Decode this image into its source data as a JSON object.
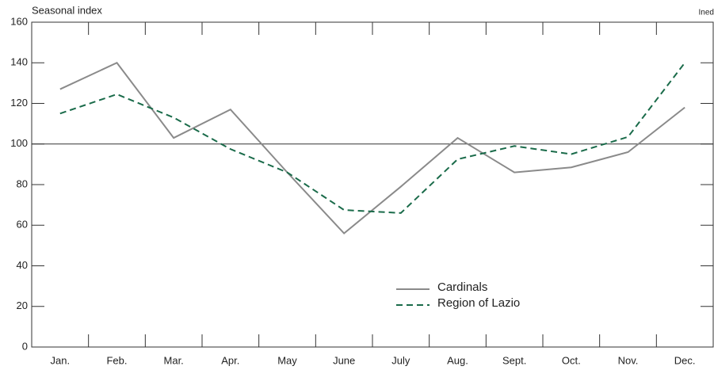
{
  "chart_data": {
    "type": "line",
    "y_axis_label": "Seasonal index",
    "source": "Ined",
    "categories": [
      "Jan.",
      "Feb.",
      "Mar.",
      "Apr.",
      "May",
      "June",
      "July",
      "Aug.",
      "Sept.",
      "Oct.",
      "Nov.",
      "Dec."
    ],
    "series": [
      {
        "name": "Cardinals",
        "color": "#8a8a8a",
        "dashed": false,
        "values": [
          127,
          140,
          103,
          117,
          86,
          56,
          79,
          103,
          86,
          88.5,
          96,
          118
        ]
      },
      {
        "name": "Region of Lazio",
        "color": "#1a6b4a",
        "dashed": true,
        "values": [
          115,
          124.5,
          113,
          97.5,
          86,
          67.5,
          66,
          92.5,
          99,
          95,
          103.5,
          140
        ]
      }
    ],
    "reference_line": 100,
    "ylim": [
      0,
      160
    ],
    "yticks": [
      0,
      20,
      40,
      60,
      80,
      100,
      120,
      140,
      160
    ]
  }
}
